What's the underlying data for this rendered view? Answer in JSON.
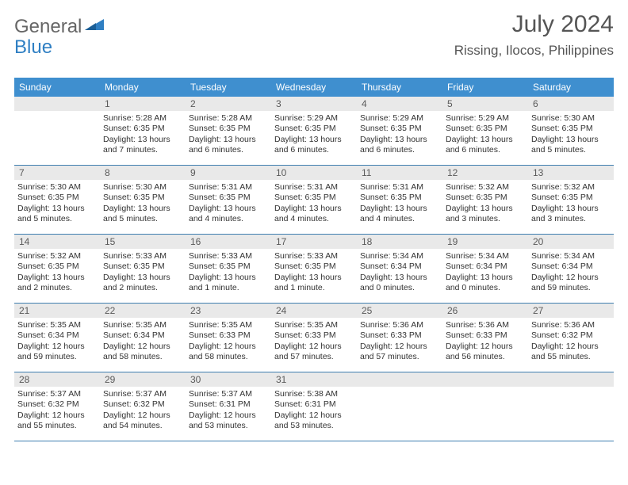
{
  "brand": {
    "part1": "General",
    "part2": "Blue"
  },
  "title": "July 2024",
  "location": "Rissing, Ilocos, Philippines",
  "colors": {
    "header_bg": "#3f8fcf",
    "header_text": "#ffffff",
    "daynum_bg": "#e9e9e9",
    "daynum_text": "#5a5a5a",
    "body_text": "#333333",
    "rule": "#3f7fb0",
    "logo_gray": "#666666",
    "logo_blue": "#2f7fc3"
  },
  "weekdays": [
    "Sunday",
    "Monday",
    "Tuesday",
    "Wednesday",
    "Thursday",
    "Friday",
    "Saturday"
  ],
  "weeks": [
    [
      {
        "n": "",
        "sr": "",
        "ss": "",
        "dl": ""
      },
      {
        "n": "1",
        "sr": "Sunrise: 5:28 AM",
        "ss": "Sunset: 6:35 PM",
        "dl": "Daylight: 13 hours and 7 minutes."
      },
      {
        "n": "2",
        "sr": "Sunrise: 5:28 AM",
        "ss": "Sunset: 6:35 PM",
        "dl": "Daylight: 13 hours and 6 minutes."
      },
      {
        "n": "3",
        "sr": "Sunrise: 5:29 AM",
        "ss": "Sunset: 6:35 PM",
        "dl": "Daylight: 13 hours and 6 minutes."
      },
      {
        "n": "4",
        "sr": "Sunrise: 5:29 AM",
        "ss": "Sunset: 6:35 PM",
        "dl": "Daylight: 13 hours and 6 minutes."
      },
      {
        "n": "5",
        "sr": "Sunrise: 5:29 AM",
        "ss": "Sunset: 6:35 PM",
        "dl": "Daylight: 13 hours and 6 minutes."
      },
      {
        "n": "6",
        "sr": "Sunrise: 5:30 AM",
        "ss": "Sunset: 6:35 PM",
        "dl": "Daylight: 13 hours and 5 minutes."
      }
    ],
    [
      {
        "n": "7",
        "sr": "Sunrise: 5:30 AM",
        "ss": "Sunset: 6:35 PM",
        "dl": "Daylight: 13 hours and 5 minutes."
      },
      {
        "n": "8",
        "sr": "Sunrise: 5:30 AM",
        "ss": "Sunset: 6:35 PM",
        "dl": "Daylight: 13 hours and 5 minutes."
      },
      {
        "n": "9",
        "sr": "Sunrise: 5:31 AM",
        "ss": "Sunset: 6:35 PM",
        "dl": "Daylight: 13 hours and 4 minutes."
      },
      {
        "n": "10",
        "sr": "Sunrise: 5:31 AM",
        "ss": "Sunset: 6:35 PM",
        "dl": "Daylight: 13 hours and 4 minutes."
      },
      {
        "n": "11",
        "sr": "Sunrise: 5:31 AM",
        "ss": "Sunset: 6:35 PM",
        "dl": "Daylight: 13 hours and 4 minutes."
      },
      {
        "n": "12",
        "sr": "Sunrise: 5:32 AM",
        "ss": "Sunset: 6:35 PM",
        "dl": "Daylight: 13 hours and 3 minutes."
      },
      {
        "n": "13",
        "sr": "Sunrise: 5:32 AM",
        "ss": "Sunset: 6:35 PM",
        "dl": "Daylight: 13 hours and 3 minutes."
      }
    ],
    [
      {
        "n": "14",
        "sr": "Sunrise: 5:32 AM",
        "ss": "Sunset: 6:35 PM",
        "dl": "Daylight: 13 hours and 2 minutes."
      },
      {
        "n": "15",
        "sr": "Sunrise: 5:33 AM",
        "ss": "Sunset: 6:35 PM",
        "dl": "Daylight: 13 hours and 2 minutes."
      },
      {
        "n": "16",
        "sr": "Sunrise: 5:33 AM",
        "ss": "Sunset: 6:35 PM",
        "dl": "Daylight: 13 hours and 1 minute."
      },
      {
        "n": "17",
        "sr": "Sunrise: 5:33 AM",
        "ss": "Sunset: 6:35 PM",
        "dl": "Daylight: 13 hours and 1 minute."
      },
      {
        "n": "18",
        "sr": "Sunrise: 5:34 AM",
        "ss": "Sunset: 6:34 PM",
        "dl": "Daylight: 13 hours and 0 minutes."
      },
      {
        "n": "19",
        "sr": "Sunrise: 5:34 AM",
        "ss": "Sunset: 6:34 PM",
        "dl": "Daylight: 13 hours and 0 minutes."
      },
      {
        "n": "20",
        "sr": "Sunrise: 5:34 AM",
        "ss": "Sunset: 6:34 PM",
        "dl": "Daylight: 12 hours and 59 minutes."
      }
    ],
    [
      {
        "n": "21",
        "sr": "Sunrise: 5:35 AM",
        "ss": "Sunset: 6:34 PM",
        "dl": "Daylight: 12 hours and 59 minutes."
      },
      {
        "n": "22",
        "sr": "Sunrise: 5:35 AM",
        "ss": "Sunset: 6:34 PM",
        "dl": "Daylight: 12 hours and 58 minutes."
      },
      {
        "n": "23",
        "sr": "Sunrise: 5:35 AM",
        "ss": "Sunset: 6:33 PM",
        "dl": "Daylight: 12 hours and 58 minutes."
      },
      {
        "n": "24",
        "sr": "Sunrise: 5:35 AM",
        "ss": "Sunset: 6:33 PM",
        "dl": "Daylight: 12 hours and 57 minutes."
      },
      {
        "n": "25",
        "sr": "Sunrise: 5:36 AM",
        "ss": "Sunset: 6:33 PM",
        "dl": "Daylight: 12 hours and 57 minutes."
      },
      {
        "n": "26",
        "sr": "Sunrise: 5:36 AM",
        "ss": "Sunset: 6:33 PM",
        "dl": "Daylight: 12 hours and 56 minutes."
      },
      {
        "n": "27",
        "sr": "Sunrise: 5:36 AM",
        "ss": "Sunset: 6:32 PM",
        "dl": "Daylight: 12 hours and 55 minutes."
      }
    ],
    [
      {
        "n": "28",
        "sr": "Sunrise: 5:37 AM",
        "ss": "Sunset: 6:32 PM",
        "dl": "Daylight: 12 hours and 55 minutes."
      },
      {
        "n": "29",
        "sr": "Sunrise: 5:37 AM",
        "ss": "Sunset: 6:32 PM",
        "dl": "Daylight: 12 hours and 54 minutes."
      },
      {
        "n": "30",
        "sr": "Sunrise: 5:37 AM",
        "ss": "Sunset: 6:31 PM",
        "dl": "Daylight: 12 hours and 53 minutes."
      },
      {
        "n": "31",
        "sr": "Sunrise: 5:38 AM",
        "ss": "Sunset: 6:31 PM",
        "dl": "Daylight: 12 hours and 53 minutes."
      },
      {
        "n": "",
        "sr": "",
        "ss": "",
        "dl": ""
      },
      {
        "n": "",
        "sr": "",
        "ss": "",
        "dl": ""
      },
      {
        "n": "",
        "sr": "",
        "ss": "",
        "dl": ""
      }
    ]
  ]
}
